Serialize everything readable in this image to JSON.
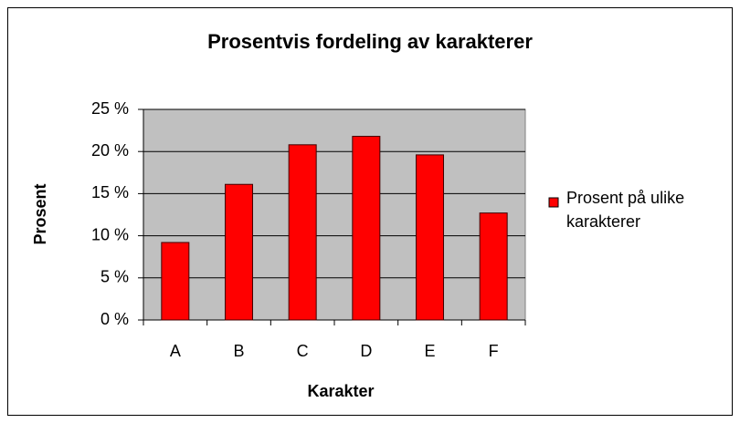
{
  "chart_data": {
    "type": "bar",
    "title": "Prosentvis fordeling av karakterer",
    "xlabel": "Karakter",
    "ylabel": "Prosent",
    "categories": [
      "A",
      "B",
      "C",
      "D",
      "E",
      "F"
    ],
    "series": [
      {
        "name": "Prosent på ulike karakterer",
        "color": "#ff0000",
        "values": [
          9.2,
          16.1,
          20.8,
          21.8,
          19.6,
          12.7
        ]
      }
    ],
    "ylim": [
      0,
      25
    ],
    "yticks": [
      {
        "value": 0,
        "label": "0 %"
      },
      {
        "value": 5,
        "label": "5 %"
      },
      {
        "value": 10,
        "label": "10 %"
      },
      {
        "value": 15,
        "label": "15 %"
      },
      {
        "value": 20,
        "label": "20 %"
      },
      {
        "value": 25,
        "label": "25 %"
      }
    ],
    "grid": true,
    "legend": "right"
  }
}
